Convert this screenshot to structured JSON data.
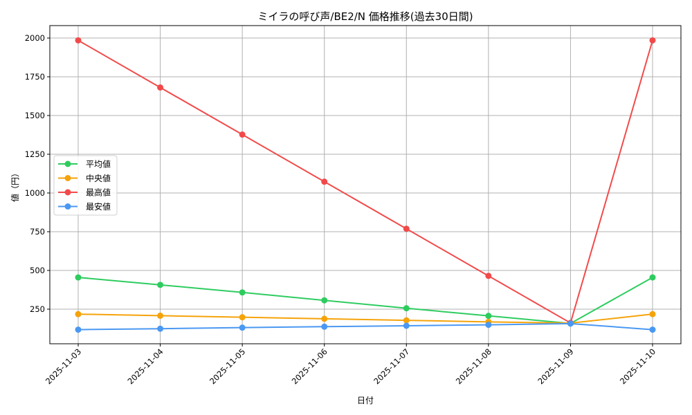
{
  "chart_data": {
    "type": "line",
    "title": "ミイラの呼び声/BE2/N 価格推移(過去30日間)",
    "xlabel": "日付",
    "ylabel": "値（円）",
    "categories": [
      "2025-11-03",
      "2025-11-04",
      "2025-11-05",
      "2025-11-06",
      "2025-11-07",
      "2025-11-08",
      "2025-11-09",
      "2025-11-10"
    ],
    "series": [
      {
        "name": "平均値",
        "color": "#2ecc5f",
        "values": [
          455,
          407,
          358,
          307,
          256,
          207,
          158,
          455
        ]
      },
      {
        "name": "中央値",
        "color": "#f5a30a",
        "values": [
          218,
          208,
          198,
          188,
          178,
          168,
          160,
          218
        ]
      },
      {
        "name": "最高値",
        "color": "#f24a4a",
        "values": [
          1985,
          1681,
          1377,
          1073,
          769,
          465,
          161,
          1985
        ]
      },
      {
        "name": "最安値",
        "color": "#4a98f2",
        "values": [
          118,
          124,
          131,
          137,
          143,
          149,
          157,
          118
        ]
      }
    ],
    "yticks": [
      250,
      500,
      750,
      1000,
      1250,
      1500,
      1750,
      2000
    ],
    "ylim": [
      30,
      2080
    ],
    "grid": true,
    "legend_position": "center left"
  }
}
